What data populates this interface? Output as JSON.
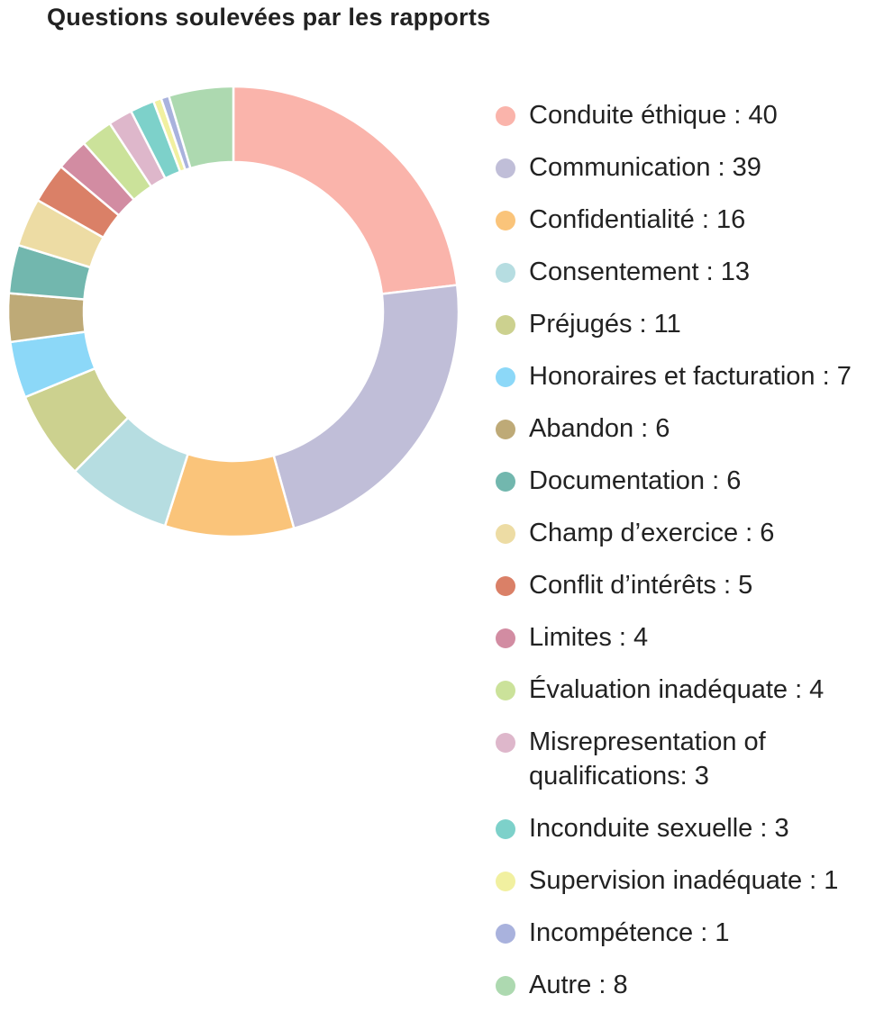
{
  "chart_data": {
    "type": "pie",
    "variant": "donut",
    "title": "Questions soulevées par les rapports",
    "legend_position": "right",
    "slices": [
      {
        "label": "Conduite éthique : 40",
        "category": "Conduite éthique",
        "value": 40,
        "color": "#FAB4AB"
      },
      {
        "label": "Communication : 39",
        "category": "Communication",
        "value": 39,
        "color": "#C0BED8"
      },
      {
        "label": "Confidentialité : 16",
        "category": "Confidentialité",
        "value": 16,
        "color": "#FAC47A"
      },
      {
        "label": "Consentement : 13",
        "category": "Consentement",
        "value": 13,
        "color": "#B6DDE1"
      },
      {
        "label": "Préjugés : 11",
        "category": "Préjugés",
        "value": 11,
        "color": "#CCD18F"
      },
      {
        "label": "Honoraires et facturation : 7",
        "category": "Honoraires et facturation",
        "value": 7,
        "color": "#8CD8F8"
      },
      {
        "label": "Abandon : 6",
        "category": "Abandon",
        "value": 6,
        "color": "#BEAA77"
      },
      {
        "label": "Documentation : 6",
        "category": "Documentation",
        "value": 6,
        "color": "#72B7AE"
      },
      {
        "label": "Champ d’exercice : 6",
        "category": "Champ d’exercice",
        "value": 6,
        "color": "#EDDCA4"
      },
      {
        "label": "Conflit d’intérêts : 5",
        "category": "Conflit d’intérêts",
        "value": 5,
        "color": "#DA8067"
      },
      {
        "label": "Limites : 4",
        "category": "Limites",
        "value": 4,
        "color": "#D28CA2"
      },
      {
        "label": "Évaluation inadéquate : 4",
        "category": "Évaluation inadéquate",
        "value": 4,
        "color": "#CBE29A"
      },
      {
        "label": "Misrepresentation of\nqualifications: 3",
        "category": "Misrepresentation of qualifications",
        "value": 3,
        "color": "#DEB7CB"
      },
      {
        "label": "Inconduite sexuelle : 3",
        "category": "Inconduite sexuelle",
        "value": 3,
        "color": "#7DD1CA"
      },
      {
        "label": "Supervision inadéquate : 1",
        "category": "Supervision inadéquate",
        "value": 1,
        "color": "#F1F0A0"
      },
      {
        "label": "Incompétence : 1",
        "category": "Incompétence",
        "value": 1,
        "color": "#A9B2DD"
      },
      {
        "label": "Autre : 8",
        "category": "Autre",
        "value": 8,
        "color": "#ADD9B0"
      }
    ]
  }
}
